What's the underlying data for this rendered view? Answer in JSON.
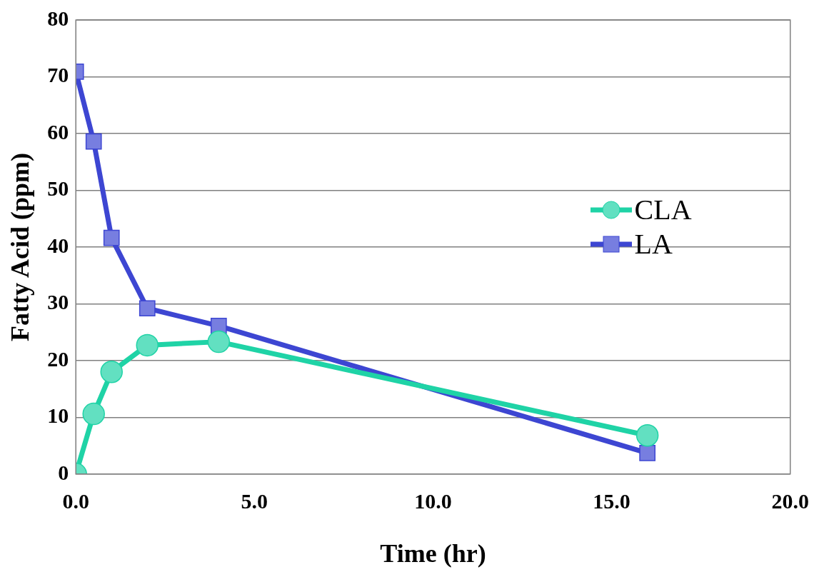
{
  "chart_data": {
    "type": "line",
    "xlabel": "Time (hr)",
    "ylabel": "Fatty Acid (ppm)",
    "xlim": [
      0,
      20
    ],
    "xticks": [
      {
        "value": 0,
        "label": "0.0"
      },
      {
        "value": 5,
        "label": "5.0"
      },
      {
        "value": 10,
        "label": "10.0"
      },
      {
        "value": 15,
        "label": "15.0"
      },
      {
        "value": 20,
        "label": "20.0"
      }
    ],
    "ylim": [
      0,
      80
    ],
    "yticks": [
      0,
      10,
      20,
      30,
      40,
      50,
      60,
      70,
      80
    ],
    "x": [
      0,
      0.5,
      1,
      2,
      4,
      16
    ],
    "series": [
      {
        "name": "CLA",
        "color": "#1fd3a6",
        "marker": "circle",
        "values": [
          0,
          10.6,
          18.0,
          22.7,
          23.3,
          6.8
        ]
      },
      {
        "name": "LA",
        "color": "#3d46d2",
        "marker": "square",
        "values": [
          70.9,
          58.6,
          41.6,
          29.2,
          26.1,
          3.7
        ]
      }
    ],
    "grid": "y",
    "legend": "right",
    "line_style": "solid"
  }
}
